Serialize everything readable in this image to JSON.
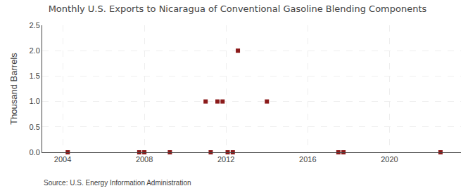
{
  "chart_data": {
    "type": "scatter",
    "title": "Monthly U.S. Exports to Nicaragua of Conventional Gasoline Blending Components",
    "ylabel": "Thousand Barrels",
    "annotations": [
      "Source: U.S. Energy Information Administration"
    ],
    "x": [
      2004.25,
      2007.75,
      2008.0,
      2009.25,
      2011.0,
      2011.25,
      2011.58,
      2011.83,
      2012.08,
      2012.33,
      2012.58,
      2014.0,
      2017.5,
      2017.75,
      2022.5
    ],
    "values": [
      0.0,
      0.0,
      0.0,
      0.0,
      1.0,
      0.0,
      1.0,
      1.0,
      0.0,
      0.0,
      2.0,
      1.0,
      0.0,
      0.0,
      0.0
    ],
    "color": "#8b1a1a",
    "marker": "square",
    "xlim": [
      2003.0,
      2023.5
    ],
    "xticks": [
      2004,
      2008,
      2012,
      2016,
      2020
    ],
    "ylim": [
      0.0,
      2.5
    ],
    "yticks": [
      {
        "value": 0.0,
        "label": "0.0"
      },
      0.5,
      {
        "value": 1.0,
        "label": "1.0"
      },
      1.5,
      {
        "value": 2.0,
        "label": "2.0"
      },
      2.5
    ],
    "grid": true
  }
}
